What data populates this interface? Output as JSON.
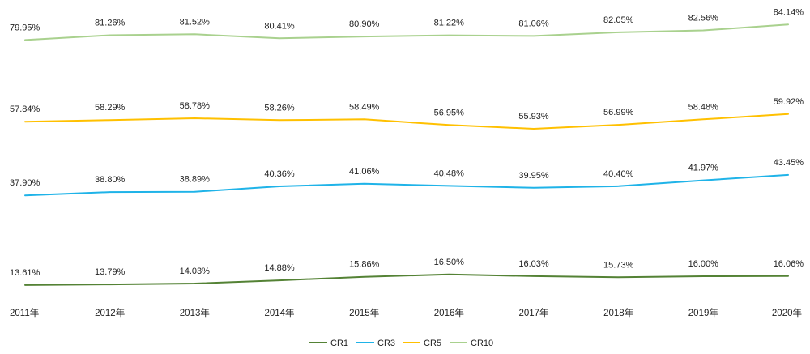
{
  "chart_data": {
    "type": "line",
    "categories": [
      "2011年",
      "2012年",
      "2013年",
      "2014年",
      "2015年",
      "2016年",
      "2017年",
      "2018年",
      "2019年",
      "2020年"
    ],
    "series": [
      {
        "name": "CR1",
        "color": "#548235",
        "values": [
          13.61,
          13.79,
          14.03,
          14.88,
          15.86,
          16.5,
          16.03,
          15.73,
          16.0,
          16.06
        ],
        "labels": [
          "13.61%",
          "13.79%",
          "14.03%",
          "14.88%",
          "15.86%",
          "16.50%",
          "16.03%",
          "15.73%",
          "16.00%",
          "16.06%"
        ]
      },
      {
        "name": "CR3",
        "color": "#1FB3E8",
        "values": [
          37.9,
          38.8,
          38.89,
          40.36,
          41.06,
          40.48,
          39.95,
          40.4,
          41.97,
          43.45
        ],
        "labels": [
          "37.90%",
          "38.80%",
          "38.89%",
          "40.36%",
          "41.06%",
          "40.48%",
          "39.95%",
          "40.40%",
          "41.97%",
          "43.45%"
        ]
      },
      {
        "name": "CR5",
        "color": "#FFC000",
        "values": [
          57.84,
          58.29,
          58.78,
          58.26,
          58.49,
          56.95,
          55.93,
          56.99,
          58.48,
          59.92
        ],
        "labels": [
          "57.84%",
          "58.29%",
          "58.78%",
          "58.26%",
          "58.49%",
          "56.95%",
          "55.93%",
          "56.99%",
          "58.48%",
          "59.92%"
        ]
      },
      {
        "name": "CR10",
        "color": "#A9D18E",
        "values": [
          79.95,
          81.26,
          81.52,
          80.41,
          80.9,
          81.22,
          81.06,
          82.05,
          82.56,
          84.14
        ],
        "labels": [
          "79.95%",
          "81.26%",
          "81.52%",
          "80.41%",
          "80.90%",
          "81.22%",
          "81.06%",
          "82.05%",
          "82.56%",
          "84.14%"
        ]
      }
    ],
    "legend_position": "bottom",
    "grid": false
  }
}
